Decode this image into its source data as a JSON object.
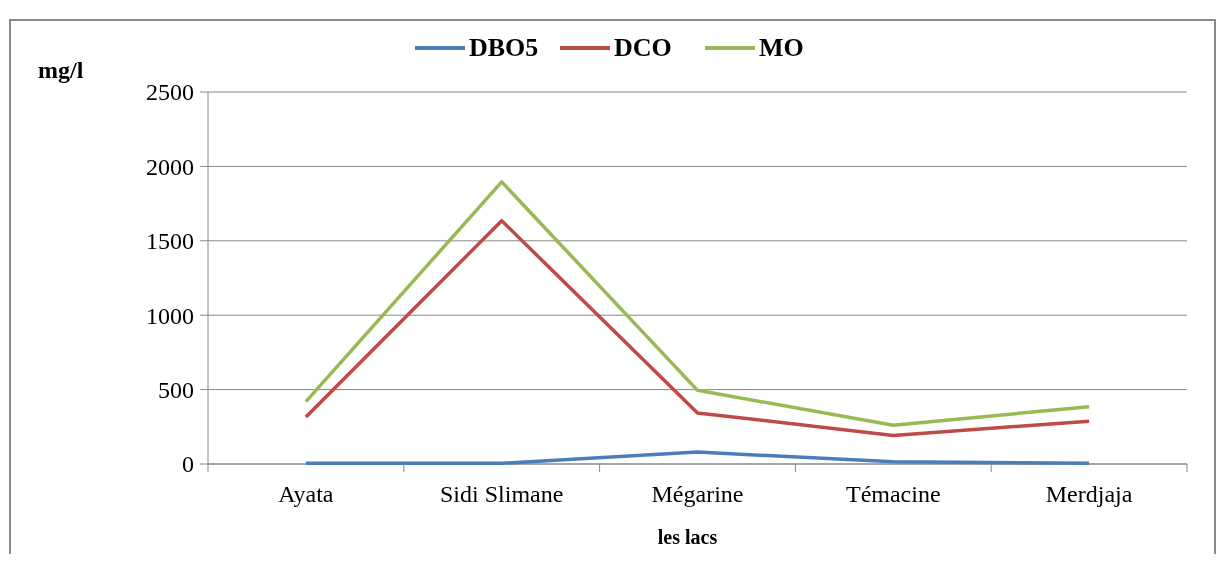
{
  "chart_data": {
    "type": "line",
    "xlabel": "les lacs",
    "ylabel": "mg/l",
    "categories": [
      "Ayata",
      "Sidi Slimane",
      "Mégarine",
      "Témacine",
      "Merdjaja"
    ],
    "series": [
      {
        "name": "DBO5",
        "color": "#4a7ebb",
        "values": [
          5,
          5,
          80,
          15,
          5
        ]
      },
      {
        "name": "DCO",
        "color": "#be4b48",
        "values": [
          316,
          1635,
          343,
          192,
          288
        ]
      },
      {
        "name": "MO",
        "color": "#98b954",
        "values": [
          419,
          1896,
          495,
          261,
          385
        ]
      }
    ],
    "ylim": [
      0,
      2500
    ],
    "yticks": [
      0,
      500,
      1000,
      1500,
      2000,
      2500
    ],
    "grid": "y",
    "legend": "top",
    "marker": "none",
    "line_style": "solid"
  }
}
